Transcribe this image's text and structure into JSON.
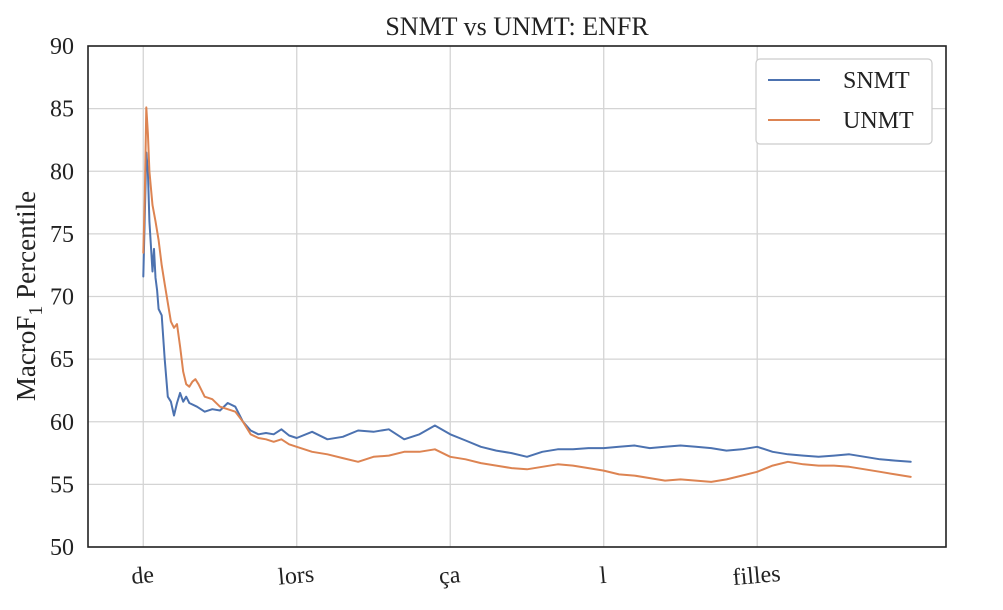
{
  "chart_data": {
    "type": "line",
    "title": "SNMT vs UNMT: ENFR",
    "xlabel": "",
    "ylabel_main": "MacroF",
    "ylabel_sub": "1",
    "ylabel_rest": " Percentile",
    "ylim": [
      50,
      90
    ],
    "yticks": [
      50,
      55,
      60,
      65,
      70,
      75,
      80,
      85,
      90
    ],
    "xlim": [
      -0.36,
      5.23
    ],
    "categories": [
      "de",
      "lors",
      "ça",
      "l",
      "filles"
    ],
    "grid": true,
    "legend_position": "top-right",
    "colors": {
      "SNMT": "#4c72b0",
      "UNMT": "#dd8452"
    },
    "series": [
      {
        "name": "SNMT",
        "x": [
          0,
          0.01,
          0.02,
          0.03,
          0.04,
          0.06,
          0.07,
          0.08,
          0.09,
          0.1,
          0.12,
          0.14,
          0.16,
          0.18,
          0.2,
          0.22,
          0.24,
          0.26,
          0.28,
          0.3,
          0.35,
          0.4,
          0.45,
          0.5,
          0.55,
          0.6,
          0.65,
          0.7,
          0.75,
          0.8,
          0.85,
          0.9,
          0.95,
          1.0,
          1.1,
          1.2,
          1.3,
          1.4,
          1.5,
          1.6,
          1.7,
          1.8,
          1.9,
          2.0,
          2.1,
          2.2,
          2.3,
          2.4,
          2.5,
          2.6,
          2.7,
          2.8,
          2.9,
          3.0,
          3.1,
          3.2,
          3.3,
          3.4,
          3.5,
          3.6,
          3.7,
          3.8,
          3.9,
          4.0,
          4.1,
          4.2,
          4.3,
          4.4,
          4.5,
          4.6,
          4.7,
          4.8,
          4.9,
          5.0
        ],
        "y": [
          71.6,
          76.5,
          81.5,
          80.0,
          76.0,
          72.0,
          73.8,
          71.5,
          70.5,
          69.0,
          68.5,
          65.0,
          62.0,
          61.6,
          60.5,
          61.5,
          62.3,
          61.6,
          62.0,
          61.5,
          61.2,
          60.8,
          61.0,
          60.9,
          61.5,
          61.2,
          60.0,
          59.3,
          59.0,
          59.1,
          59.0,
          59.4,
          58.9,
          58.7,
          59.2,
          58.6,
          58.8,
          59.3,
          59.2,
          59.4,
          58.6,
          59.0,
          59.7,
          59.0,
          58.5,
          58.0,
          57.7,
          57.5,
          57.2,
          57.6,
          57.8,
          57.8,
          57.9,
          57.9,
          58.0,
          58.1,
          57.9,
          58.0,
          58.1,
          58.0,
          57.9,
          57.7,
          57.8,
          58.0,
          57.6,
          57.4,
          57.3,
          57.2,
          57.3,
          57.4,
          57.2,
          57.0,
          56.9,
          56.8
        ]
      },
      {
        "name": "UNMT",
        "x": [
          0,
          0.01,
          0.02,
          0.03,
          0.04,
          0.06,
          0.08,
          0.1,
          0.12,
          0.14,
          0.16,
          0.18,
          0.2,
          0.22,
          0.24,
          0.26,
          0.28,
          0.3,
          0.32,
          0.34,
          0.36,
          0.4,
          0.45,
          0.5,
          0.55,
          0.6,
          0.65,
          0.7,
          0.75,
          0.8,
          0.85,
          0.9,
          0.95,
          1.0,
          1.1,
          1.2,
          1.3,
          1.4,
          1.5,
          1.6,
          1.7,
          1.8,
          1.9,
          2.0,
          2.1,
          2.2,
          2.3,
          2.4,
          2.5,
          2.6,
          2.7,
          2.8,
          2.9,
          3.0,
          3.1,
          3.2,
          3.3,
          3.4,
          3.5,
          3.6,
          3.7,
          3.8,
          3.9,
          4.0,
          4.1,
          4.2,
          4.3,
          4.4,
          4.5,
          4.6,
          4.7,
          4.8,
          4.9,
          5.0
        ],
        "y": [
          73.5,
          78.0,
          85.1,
          83.0,
          80.0,
          77.3,
          76.0,
          74.5,
          72.5,
          71.0,
          69.5,
          68.0,
          67.5,
          67.8,
          66.0,
          64.0,
          63.0,
          62.8,
          63.2,
          63.4,
          63.0,
          62.0,
          61.8,
          61.2,
          61.0,
          60.8,
          60.0,
          59.0,
          58.7,
          58.6,
          58.4,
          58.6,
          58.2,
          58.0,
          57.6,
          57.4,
          57.1,
          56.8,
          57.2,
          57.3,
          57.6,
          57.6,
          57.8,
          57.2,
          57.0,
          56.7,
          56.5,
          56.3,
          56.2,
          56.4,
          56.6,
          56.5,
          56.3,
          56.1,
          55.8,
          55.7,
          55.5,
          55.3,
          55.4,
          55.3,
          55.2,
          55.4,
          55.7,
          56.0,
          56.5,
          56.8,
          56.6,
          56.5,
          56.5,
          56.4,
          56.2,
          56.0,
          55.8,
          55.6
        ]
      }
    ]
  }
}
